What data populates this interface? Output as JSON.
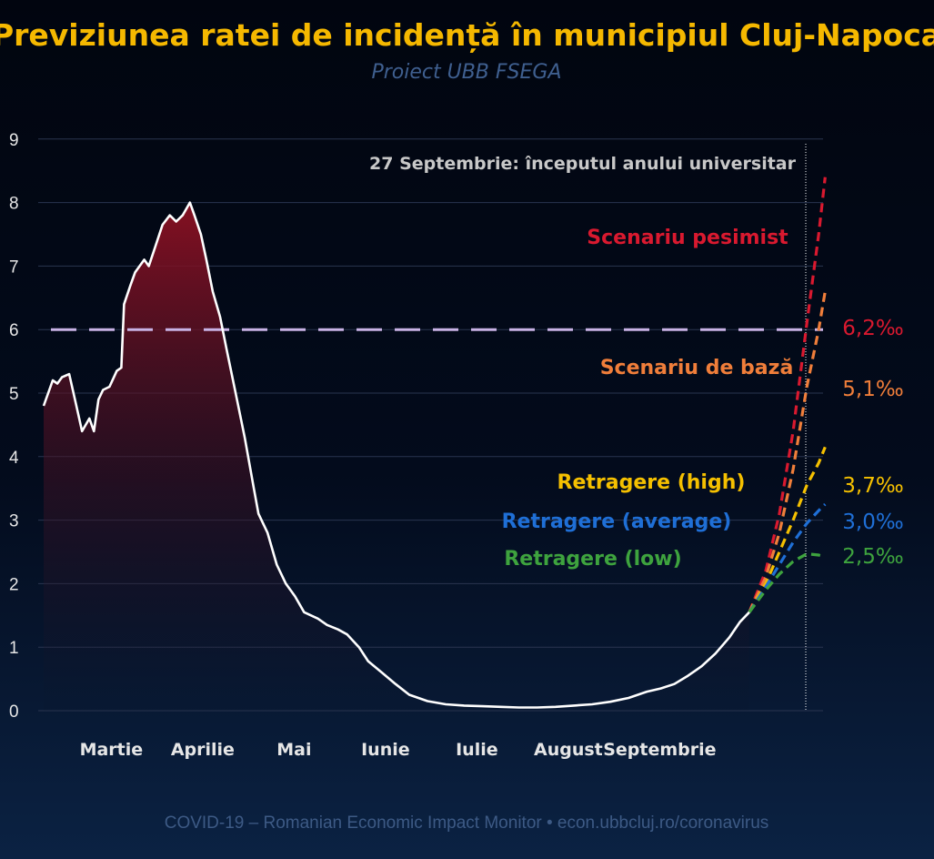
{
  "chart_data": {
    "type": "line",
    "title": "Previziunea ratei de incidență în municipiul Cluj-Napoca",
    "subtitle": "Proiect UBB FSEGA",
    "footer": "COVID-19 – Romanian Economic Impact Monitor • econ.ubbcluj.ro/coronavirus",
    "xlabel": "",
    "ylabel": "",
    "ylim": [
      0,
      9
    ],
    "grid": true,
    "y_ticks": [
      0,
      1,
      2,
      3,
      4,
      5,
      6,
      7,
      8,
      9
    ],
    "x_categories": [
      "Martie",
      "Aprilie",
      "Mai",
      "Iunie",
      "Iulie",
      "August",
      "Septembrie"
    ],
    "threshold": {
      "value": 6,
      "style": "dashed",
      "color": "#c9b3e6"
    },
    "annotation": "27 Septembrie: începutul anului universitar",
    "colors": {
      "title": "#f5b800",
      "subtitle": "#3f5f8f",
      "history": "#ffffff",
      "history_fill": "#7a1020",
      "grid": "#2a3550",
      "tick": "#e6e6e6",
      "footer": "#3d5a85"
    },
    "history": {
      "name": "",
      "points": [
        [
          0.0,
          4.8
        ],
        [
          0.1,
          5.2
        ],
        [
          0.15,
          5.15
        ],
        [
          0.2,
          5.25
        ],
        [
          0.28,
          5.3
        ],
        [
          0.35,
          4.85
        ],
        [
          0.42,
          4.4
        ],
        [
          0.5,
          4.6
        ],
        [
          0.55,
          4.4
        ],
        [
          0.6,
          4.9
        ],
        [
          0.65,
          5.05
        ],
        [
          0.72,
          5.1
        ],
        [
          0.8,
          5.35
        ],
        [
          0.85,
          5.4
        ],
        [
          0.88,
          6.4
        ],
        [
          0.95,
          6.7
        ],
        [
          1.0,
          6.9
        ],
        [
          1.1,
          7.1
        ],
        [
          1.15,
          7.0
        ],
        [
          1.22,
          7.3
        ],
        [
          1.3,
          7.65
        ],
        [
          1.38,
          7.8
        ],
        [
          1.45,
          7.7
        ],
        [
          1.52,
          7.8
        ],
        [
          1.6,
          8.0
        ],
        [
          1.65,
          7.8
        ],
        [
          1.72,
          7.5
        ],
        [
          1.78,
          7.1
        ],
        [
          1.85,
          6.6
        ],
        [
          1.93,
          6.2
        ],
        [
          2.0,
          5.7
        ],
        [
          2.1,
          5.0
        ],
        [
          2.2,
          4.3
        ],
        [
          2.3,
          3.5
        ],
        [
          2.35,
          3.1
        ],
        [
          2.45,
          2.8
        ],
        [
          2.55,
          2.3
        ],
        [
          2.65,
          2.0
        ],
        [
          2.75,
          1.8
        ],
        [
          2.85,
          1.55
        ],
        [
          3.0,
          1.45
        ],
        [
          3.1,
          1.35
        ],
        [
          3.22,
          1.28
        ],
        [
          3.32,
          1.2
        ],
        [
          3.45,
          1.0
        ],
        [
          3.55,
          0.78
        ],
        [
          3.7,
          0.6
        ],
        [
          3.85,
          0.42
        ],
        [
          4.0,
          0.25
        ],
        [
          4.2,
          0.15
        ],
        [
          4.4,
          0.1
        ],
        [
          4.6,
          0.08
        ],
        [
          4.8,
          0.07
        ],
        [
          5.0,
          0.06
        ],
        [
          5.2,
          0.05
        ],
        [
          5.4,
          0.05
        ],
        [
          5.6,
          0.06
        ],
        [
          5.8,
          0.08
        ],
        [
          6.0,
          0.1
        ],
        [
          6.2,
          0.14
        ],
        [
          6.4,
          0.2
        ],
        [
          6.6,
          0.3
        ],
        [
          6.75,
          0.35
        ],
        [
          6.9,
          0.42
        ],
        [
          7.05,
          0.55
        ],
        [
          7.2,
          0.7
        ],
        [
          7.35,
          0.9
        ],
        [
          7.5,
          1.15
        ],
        [
          7.62,
          1.4
        ],
        [
          7.72,
          1.55
        ]
      ]
    },
    "series": [
      {
        "name": "Scenariu pesimist",
        "color": "#d9192f",
        "end_label": "6,2‰",
        "points": [
          [
            7.72,
            1.55
          ],
          [
            7.9,
            2.2
          ],
          [
            8.05,
            3.1
          ],
          [
            8.2,
            4.4
          ],
          [
            8.35,
            6.1
          ],
          [
            8.48,
            7.5
          ],
          [
            8.55,
            8.4
          ]
        ]
      },
      {
        "name": "Scenariu de bază",
        "color": "#f07e3a",
        "end_label": "5,1‰",
        "points": [
          [
            7.72,
            1.55
          ],
          [
            7.9,
            2.1
          ],
          [
            8.05,
            2.8
          ],
          [
            8.2,
            3.8
          ],
          [
            8.35,
            5.1
          ],
          [
            8.48,
            6.0
          ],
          [
            8.55,
            6.6
          ]
        ]
      },
      {
        "name": "Retragere (high)",
        "color": "#f5c000",
        "end_label": "3,7‰",
        "points": [
          [
            7.72,
            1.55
          ],
          [
            7.9,
            2.0
          ],
          [
            8.05,
            2.5
          ],
          [
            8.2,
            3.0
          ],
          [
            8.35,
            3.55
          ],
          [
            8.48,
            3.9
          ],
          [
            8.55,
            4.15
          ]
        ]
      },
      {
        "name": "Retragere (average)",
        "color": "#1f6fd6",
        "end_label": "3,0‰",
        "points": [
          [
            7.72,
            1.55
          ],
          [
            7.9,
            1.95
          ],
          [
            8.05,
            2.3
          ],
          [
            8.2,
            2.65
          ],
          [
            8.35,
            2.95
          ],
          [
            8.48,
            3.15
          ],
          [
            8.55,
            3.25
          ]
        ]
      },
      {
        "name": "Retragere (low)",
        "color": "#3ea33e",
        "end_label": "2,5‰",
        "points": [
          [
            7.72,
            1.55
          ],
          [
            7.9,
            1.9
          ],
          [
            8.05,
            2.15
          ],
          [
            8.2,
            2.35
          ],
          [
            8.35,
            2.47
          ],
          [
            8.48,
            2.45
          ],
          [
            8.55,
            2.42
          ]
        ]
      }
    ]
  }
}
